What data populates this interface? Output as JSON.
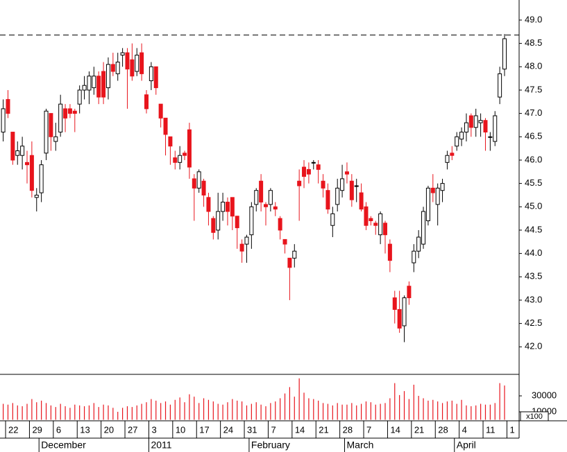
{
  "chart_data": {
    "type": "candlestick",
    "ohlc": [
      [
        46.6,
        47.3,
        46.4,
        47.1
      ],
      [
        47.3,
        47.5,
        46.9,
        47.0
      ],
      [
        46.6,
        46.6,
        45.9,
        46.0
      ],
      [
        46.1,
        46.4,
        45.9,
        46.2
      ],
      [
        46.1,
        46.5,
        45.8,
        46.3
      ],
      [
        45.95,
        46.2,
        45.5,
        45.9
      ],
      [
        46.1,
        46.4,
        45.2,
        45.35
      ],
      [
        45.2,
        45.4,
        44.9,
        45.25
      ],
      [
        45.3,
        46.0,
        45.1,
        45.9
      ],
      [
        46.15,
        47.1,
        46.0,
        47.05
      ],
      [
        47.0,
        47.0,
        46.2,
        46.5
      ],
      [
        46.4,
        46.8,
        46.2,
        46.5
      ],
      [
        46.6,
        47.4,
        46.5,
        47.2
      ],
      [
        47.1,
        47.2,
        46.6,
        46.9
      ],
      [
        47.1,
        47.2,
        46.9,
        47.0
      ],
      [
        47.05,
        47.1,
        46.6,
        47.0
      ],
      [
        47.2,
        47.6,
        47.0,
        47.5
      ],
      [
        47.5,
        47.8,
        47.3,
        47.6
      ],
      [
        47.5,
        47.9,
        47.2,
        47.8
      ],
      [
        47.55,
        48.0,
        47.4,
        47.8
      ],
      [
        47.8,
        47.9,
        47.2,
        47.35
      ],
      [
        47.9,
        48.1,
        47.2,
        47.35
      ],
      [
        47.55,
        48.2,
        47.3,
        48.05
      ],
      [
        48.05,
        48.3,
        47.8,
        47.9
      ],
      [
        47.85,
        48.3,
        47.7,
        48.1
      ],
      [
        48.25,
        48.4,
        48.0,
        48.3
      ],
      [
        48.3,
        48.4,
        47.1,
        47.95
      ],
      [
        48.15,
        48.5,
        47.7,
        47.8
      ],
      [
        47.9,
        48.4,
        47.8,
        48.25
      ],
      [
        48.3,
        48.5,
        47.7,
        47.85
      ],
      [
        47.4,
        47.5,
        47.0,
        47.1
      ],
      [
        47.7,
        48.1,
        47.5,
        48.0
      ],
      [
        48.0,
        48.0,
        47.4,
        47.55
      ],
      [
        47.2,
        47.2,
        46.7,
        46.9
      ],
      [
        46.9,
        46.9,
        46.1,
        46.55
      ],
      [
        46.5,
        46.5,
        45.9,
        46.3
      ],
      [
        46.05,
        46.2,
        45.8,
        45.95
      ],
      [
        45.95,
        46.3,
        45.8,
        46.1
      ],
      [
        46.15,
        46.2,
        46.0,
        46.1
      ],
      [
        46.65,
        46.8,
        45.6,
        45.85
      ],
      [
        45.6,
        45.7,
        44.7,
        45.4
      ],
      [
        45.4,
        45.8,
        45.3,
        45.75
      ],
      [
        45.55,
        45.6,
        45.0,
        45.25
      ],
      [
        45.2,
        45.3,
        44.6,
        44.9
      ],
      [
        44.75,
        44.8,
        44.3,
        44.45
      ],
      [
        44.5,
        45.3,
        44.3,
        44.9
      ],
      [
        44.9,
        45.3,
        44.7,
        45.1
      ],
      [
        45.1,
        45.2,
        44.6,
        44.9
      ],
      [
        45.2,
        45.2,
        44.5,
        44.8
      ],
      [
        44.8,
        44.8,
        44.1,
        44.55
      ],
      [
        44.2,
        44.3,
        43.8,
        44.05
      ],
      [
        44.2,
        44.4,
        43.8,
        44.35
      ],
      [
        44.4,
        45.1,
        44.1,
        45.0
      ],
      [
        45.05,
        45.4,
        44.9,
        45.35
      ],
      [
        45.55,
        45.7,
        44.9,
        45.1
      ],
      [
        45.05,
        45.1,
        44.6,
        45.0
      ],
      [
        45.05,
        45.4,
        44.9,
        45.35
      ],
      [
        45.0,
        45.1,
        44.8,
        44.95
      ],
      [
        44.75,
        44.8,
        44.3,
        44.5
      ],
      [
        44.3,
        44.3,
        44.0,
        44.2
      ],
      [
        43.9,
        43.9,
        43.0,
        43.7
      ],
      [
        43.9,
        44.2,
        43.7,
        44.05
      ],
      [
        45.55,
        45.8,
        44.7,
        45.45
      ],
      [
        45.85,
        46.0,
        45.4,
        45.65
      ],
      [
        45.8,
        45.95,
        45.5,
        45.7
      ],
      [
        45.95,
        46.0,
        45.8,
        45.95
      ],
      [
        45.9,
        46.0,
        45.5,
        45.8
      ],
      [
        45.55,
        45.7,
        45.2,
        45.4
      ],
      [
        45.35,
        45.5,
        44.85,
        44.95
      ],
      [
        44.6,
        45.0,
        44.35,
        44.85
      ],
      [
        45.05,
        45.6,
        44.9,
        45.4
      ],
      [
        45.35,
        45.9,
        45.2,
        45.6
      ],
      [
        45.75,
        45.95,
        45.5,
        45.7
      ],
      [
        45.55,
        45.7,
        45.0,
        45.15
      ],
      [
        45.45,
        45.6,
        45.1,
        45.45
      ],
      [
        45.3,
        45.5,
        44.9,
        44.95
      ],
      [
        45.0,
        45.1,
        44.5,
        44.6
      ],
      [
        44.75,
        44.8,
        44.6,
        44.7
      ],
      [
        44.65,
        44.7,
        44.4,
        44.6
      ],
      [
        44.4,
        44.9,
        44.2,
        44.85
      ],
      [
        44.65,
        44.7,
        44.0,
        44.4
      ],
      [
        44.2,
        44.3,
        43.6,
        43.85
      ],
      [
        43.05,
        43.2,
        42.5,
        42.8
      ],
      [
        42.8,
        43.2,
        42.3,
        42.4
      ],
      [
        42.45,
        43.1,
        42.1,
        43.05
      ],
      [
        43.3,
        43.4,
        42.9,
        43.05
      ],
      [
        43.8,
        44.2,
        43.6,
        44.05
      ],
      [
        44.05,
        44.5,
        43.9,
        44.35
      ],
      [
        44.2,
        45.0,
        44.1,
        44.9
      ],
      [
        44.7,
        45.45,
        44.6,
        45.4
      ],
      [
        45.4,
        45.7,
        45.1,
        45.3
      ],
      [
        45.05,
        45.5,
        44.6,
        45.4
      ],
      [
        45.35,
        45.6,
        45.1,
        45.5
      ],
      [
        45.95,
        46.2,
        45.8,
        46.1
      ],
      [
        46.15,
        46.3,
        46.0,
        46.1
      ],
      [
        46.3,
        46.6,
        46.2,
        46.5
      ],
      [
        46.45,
        46.7,
        46.3,
        46.6
      ],
      [
        46.6,
        47.0,
        46.4,
        46.8
      ],
      [
        46.95,
        47.0,
        46.5,
        46.7
      ],
      [
        46.7,
        47.1,
        46.5,
        46.95
      ],
      [
        46.8,
        47.0,
        46.5,
        46.85
      ],
      [
        46.85,
        46.9,
        46.2,
        46.6
      ],
      [
        46.5,
        46.6,
        46.2,
        46.5
      ],
      [
        46.4,
        47.05,
        46.3,
        46.95
      ],
      [
        47.35,
        48.0,
        47.2,
        47.85
      ],
      [
        47.95,
        48.7,
        47.8,
        48.6
      ]
    ],
    "up_color": "#ffffff",
    "down_color": "#e8141c",
    "ylim": [
      41.41,
      49.43
    ],
    "yticks": [
      {
        "value": 42,
        "label": "42.0"
      },
      {
        "value": 42.5,
        "label": "42.5"
      },
      {
        "value": 43,
        "label": "43.0"
      },
      {
        "value": 43.5,
        "label": "43.5"
      },
      {
        "value": 44,
        "label": "44.0"
      },
      {
        "value": 44.5,
        "label": "44.5"
      },
      {
        "value": 45,
        "label": "45.0"
      },
      {
        "value": 45.5,
        "label": "45.5"
      },
      {
        "value": 46,
        "label": "46.0"
      },
      {
        "value": 46.5,
        "label": "46.5"
      },
      {
        "value": 47,
        "label": "47.0"
      },
      {
        "value": 47.5,
        "label": "47.5"
      },
      {
        "value": 48,
        "label": "48.0"
      },
      {
        "value": 48.5,
        "label": "48.5"
      },
      {
        "value": 49,
        "label": "49.0"
      }
    ],
    "reference_line": 48.68,
    "xticks": [
      {
        "value": 1,
        "label": "22"
      },
      {
        "value": 6,
        "label": "29"
      },
      {
        "value": 11,
        "label": "6"
      },
      {
        "value": 16,
        "label": "13"
      },
      {
        "value": 21,
        "label": "20"
      },
      {
        "value": 26,
        "label": "27"
      },
      {
        "value": 31,
        "label": "3"
      },
      {
        "value": 36,
        "label": "10"
      },
      {
        "value": 41,
        "label": "17"
      },
      {
        "value": 46,
        "label": "24"
      },
      {
        "value": 51,
        "label": "31"
      },
      {
        "value": 56,
        "label": "7"
      },
      {
        "value": 61,
        "label": "14"
      },
      {
        "value": 66,
        "label": "21"
      },
      {
        "value": 71,
        "label": "28"
      },
      {
        "value": 76,
        "label": "7"
      },
      {
        "value": 81,
        "label": "14"
      },
      {
        "value": 86,
        "label": "21"
      },
      {
        "value": 91,
        "label": "28"
      },
      {
        "value": 96,
        "label": "4"
      },
      {
        "value": 101,
        "label": "11"
      },
      {
        "value": 106,
        "label": "1"
      }
    ],
    "month_ticks": [
      {
        "value": 8,
        "label": "December"
      },
      {
        "value": 31,
        "label": "2011"
      },
      {
        "value": 52,
        "label": "February"
      },
      {
        "value": 72,
        "label": "March"
      },
      {
        "value": 95,
        "label": "April"
      }
    ],
    "volume": {
      "color": "#e8141c",
      "ylim": [
        0,
        57000
      ],
      "yticks": [
        10000,
        30000
      ],
      "unit_label": "x100",
      "values": [
        20000,
        19000,
        21000,
        18000,
        17000,
        20000,
        26000,
        22000,
        24000,
        21000,
        18000,
        16000,
        20000,
        17000,
        15000,
        19000,
        18000,
        17000,
        18000,
        21000,
        16000,
        19000,
        18000,
        15000,
        10000,
        15000,
        17000,
        16000,
        18000,
        20000,
        22000,
        26000,
        24000,
        21000,
        23000,
        19000,
        25000,
        28000,
        22000,
        32000,
        29000,
        21000,
        27000,
        25000,
        23000,
        20000,
        19000,
        22000,
        26000,
        24000,
        23000,
        18000,
        20000,
        22000,
        19000,
        17000,
        21000,
        23000,
        27000,
        33000,
        41000,
        29000,
        52000,
        34000,
        27000,
        26000,
        24000,
        21000,
        20000,
        18000,
        21000,
        19000,
        19000,
        21000,
        18000,
        20000,
        23000,
        22000,
        19000,
        20000,
        21000,
        27000,
        46000,
        31000,
        36000,
        26000,
        44000,
        30000,
        27000,
        24000,
        25000,
        23000,
        21000,
        23000,
        24000,
        20000,
        25000,
        18000,
        17000,
        18000,
        20000,
        19000,
        19000,
        21000,
        46000,
        43000
      ]
    }
  }
}
